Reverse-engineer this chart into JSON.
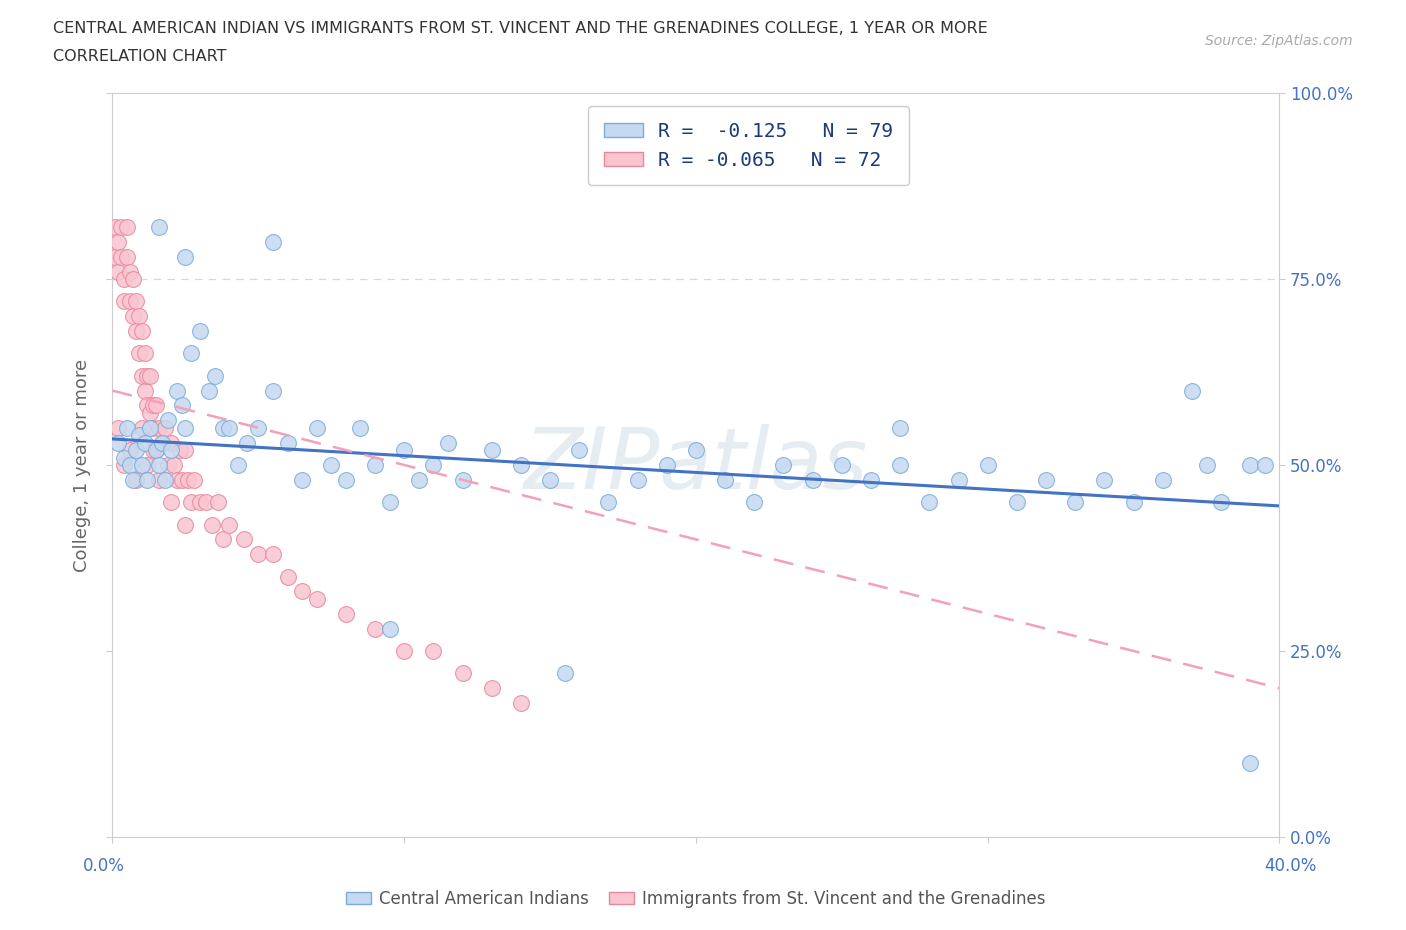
{
  "title_line1": "CENTRAL AMERICAN INDIAN VS IMMIGRANTS FROM ST. VINCENT AND THE GRENADINES COLLEGE, 1 YEAR OR MORE",
  "title_line2": "CORRELATION CHART",
  "source_text": "Source: ZipAtlas.com",
  "watermark_text": "ZIPatlas",
  "ylabel_label": "College, 1 year or more",
  "legend1_label": "R =  -0.125   N = 79",
  "legend2_label": "R = -0.065   N = 72",
  "legend_label1": "Central American Indians",
  "legend_label2": "Immigrants from St. Vincent and the Grenadines",
  "color_blue_fill": "#c5d9f0",
  "color_blue_edge": "#7aabdc",
  "color_pink_fill": "#f9c5d0",
  "color_pink_edge": "#e8879a",
  "color_trendline_blue": "#4472c4",
  "color_trendline_pink": "#f4a0b8",
  "color_axis_labels": "#4472c4",
  "xlim": [
    0.0,
    0.4
  ],
  "ylim": [
    0.0,
    1.0
  ],
  "yticks": [
    0.0,
    0.25,
    0.5,
    0.75,
    1.0
  ],
  "yticklabels": [
    "0.0%",
    "25.0%",
    "50.0%",
    "75.0%",
    "100.0%"
  ],
  "xtick_left_label": "0.0%",
  "xtick_right_label": "40.0%",
  "blue_x": [
    0.002,
    0.004,
    0.005,
    0.006,
    0.007,
    0.008,
    0.009,
    0.01,
    0.011,
    0.012,
    0.013,
    0.015,
    0.016,
    0.017,
    0.018,
    0.019,
    0.02,
    0.022,
    0.024,
    0.025,
    0.027,
    0.03,
    0.033,
    0.035,
    0.038,
    0.04,
    0.043,
    0.046,
    0.05,
    0.055,
    0.06,
    0.065,
    0.07,
    0.075,
    0.08,
    0.085,
    0.09,
    0.095,
    0.1,
    0.105,
    0.11,
    0.115,
    0.12,
    0.13,
    0.14,
    0.15,
    0.16,
    0.17,
    0.18,
    0.19,
    0.2,
    0.21,
    0.22,
    0.23,
    0.24,
    0.25,
    0.26,
    0.27,
    0.28,
    0.29,
    0.3,
    0.31,
    0.32,
    0.33,
    0.34,
    0.35,
    0.36,
    0.37,
    0.375,
    0.38,
    0.39,
    0.395,
    0.016,
    0.025,
    0.055,
    0.095,
    0.155,
    0.27,
    0.39
  ],
  "blue_y": [
    0.53,
    0.51,
    0.55,
    0.5,
    0.48,
    0.52,
    0.54,
    0.5,
    0.53,
    0.48,
    0.55,
    0.52,
    0.5,
    0.53,
    0.48,
    0.56,
    0.52,
    0.6,
    0.58,
    0.55,
    0.65,
    0.68,
    0.6,
    0.62,
    0.55,
    0.55,
    0.5,
    0.53,
    0.55,
    0.6,
    0.53,
    0.48,
    0.55,
    0.5,
    0.48,
    0.55,
    0.5,
    0.45,
    0.52,
    0.48,
    0.5,
    0.53,
    0.48,
    0.52,
    0.5,
    0.48,
    0.52,
    0.45,
    0.48,
    0.5,
    0.52,
    0.48,
    0.45,
    0.5,
    0.48,
    0.5,
    0.48,
    0.5,
    0.45,
    0.48,
    0.5,
    0.45,
    0.48,
    0.45,
    0.48,
    0.45,
    0.48,
    0.6,
    0.5,
    0.45,
    0.5,
    0.5,
    0.82,
    0.78,
    0.8,
    0.28,
    0.22,
    0.55,
    0.1
  ],
  "pink_x": [
    0.001,
    0.001,
    0.002,
    0.002,
    0.003,
    0.003,
    0.004,
    0.004,
    0.005,
    0.005,
    0.006,
    0.006,
    0.007,
    0.007,
    0.008,
    0.008,
    0.009,
    0.009,
    0.01,
    0.01,
    0.011,
    0.011,
    0.012,
    0.012,
    0.013,
    0.013,
    0.014,
    0.014,
    0.015,
    0.015,
    0.016,
    0.017,
    0.018,
    0.019,
    0.02,
    0.021,
    0.022,
    0.023,
    0.024,
    0.025,
    0.026,
    0.027,
    0.028,
    0.03,
    0.032,
    0.034,
    0.036,
    0.038,
    0.04,
    0.045,
    0.05,
    0.055,
    0.06,
    0.065,
    0.07,
    0.08,
    0.09,
    0.1,
    0.11,
    0.12,
    0.13,
    0.14,
    0.002,
    0.004,
    0.006,
    0.008,
    0.01,
    0.012,
    0.014,
    0.016,
    0.02,
    0.025
  ],
  "pink_y": [
    0.82,
    0.78,
    0.8,
    0.76,
    0.82,
    0.78,
    0.75,
    0.72,
    0.82,
    0.78,
    0.76,
    0.72,
    0.75,
    0.7,
    0.72,
    0.68,
    0.7,
    0.65,
    0.68,
    0.62,
    0.65,
    0.6,
    0.62,
    0.58,
    0.62,
    0.57,
    0.58,
    0.55,
    0.58,
    0.52,
    0.55,
    0.53,
    0.55,
    0.5,
    0.53,
    0.5,
    0.48,
    0.52,
    0.48,
    0.52,
    0.48,
    0.45,
    0.48,
    0.45,
    0.45,
    0.42,
    0.45,
    0.4,
    0.42,
    0.4,
    0.38,
    0.38,
    0.35,
    0.33,
    0.32,
    0.3,
    0.28,
    0.25,
    0.25,
    0.22,
    0.2,
    0.18,
    0.55,
    0.5,
    0.52,
    0.48,
    0.55,
    0.5,
    0.52,
    0.48,
    0.45,
    0.42
  ],
  "blue_trend_x": [
    0.0,
    0.4
  ],
  "blue_trend_y": [
    0.535,
    0.445
  ],
  "pink_trend_x": [
    0.0,
    0.4
  ],
  "pink_trend_y": [
    0.6,
    0.2
  ]
}
